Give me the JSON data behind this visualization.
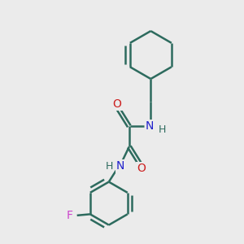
{
  "background_color": "#ebebeb",
  "bond_color": "#2d6b5e",
  "N_color": "#2020cc",
  "O_color": "#cc2020",
  "F_color": "#cc44cc",
  "line_width": 1.8,
  "figsize": [
    3.0,
    3.0
  ],
  "dpi": 100,
  "xlim": [
    0,
    10
  ],
  "ylim": [
    0,
    10
  ]
}
